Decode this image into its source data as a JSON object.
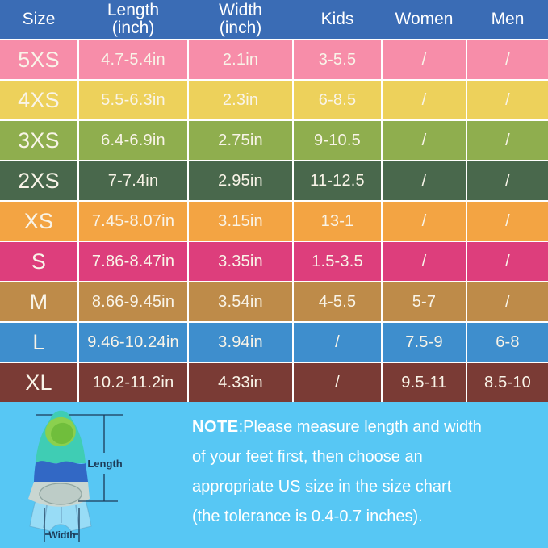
{
  "chart_data": {
    "type": "table",
    "title": "Swim fin size chart",
    "header_color": "#3A6CB5",
    "text_color": "#F9F4E8",
    "columns": [
      {
        "label": "Size",
        "line2": ""
      },
      {
        "label": "Length",
        "line2": "(inch)"
      },
      {
        "label": "Width",
        "line2": "(inch)"
      },
      {
        "label": "Kids",
        "line2": ""
      },
      {
        "label": "Women",
        "line2": ""
      },
      {
        "label": "Men",
        "line2": ""
      }
    ],
    "rows": [
      {
        "color": "#F78DA9",
        "cells": [
          "5XS",
          "4.7-5.4in",
          "2.1in",
          "3-5.5",
          "/",
          "/"
        ]
      },
      {
        "color": "#EDD15B",
        "cells": [
          "4XS",
          "5.5-6.3in",
          "2.3in",
          "6-8.5",
          "/",
          "/"
        ]
      },
      {
        "color": "#8FAE4E",
        "cells": [
          "3XS",
          "6.4-6.9in",
          "2.75in",
          "9-10.5",
          "/",
          "/"
        ]
      },
      {
        "color": "#49684C",
        "cells": [
          "2XS",
          "7-7.4in",
          "2.95in",
          "11-12.5",
          "/",
          "/"
        ]
      },
      {
        "color": "#F3A443",
        "cells": [
          "XS",
          "7.45-8.07in",
          "3.15in",
          "13-1",
          "/",
          "/"
        ]
      },
      {
        "color": "#DD3E7C",
        "cells": [
          "S",
          "7.86-8.47in",
          "3.35in",
          "1.5-3.5",
          "/",
          "/"
        ]
      },
      {
        "color": "#BE8B49",
        "cells": [
          "M",
          "8.66-9.45in",
          "3.54in",
          "4-5.5",
          "5-7",
          "/"
        ]
      },
      {
        "color": "#3E8ECD",
        "cells": [
          "L",
          "9.46-10.24in",
          "3.94in",
          "/",
          "7.5-9",
          "6-8"
        ]
      },
      {
        "color": "#7A3B35",
        "cells": [
          "XL",
          "10.2-11.2in",
          "4.33in",
          "/",
          "9.5-11",
          "8.5-10"
        ]
      }
    ]
  },
  "note": {
    "label": "NOTE",
    "rest_of_line1": ":Please measure length and width",
    "line2": "of your feet first, then choose an",
    "line3": "appropriate US size in the size chart",
    "line4": "(the tolerance is 0.4-0.7 inches)."
  },
  "fin": {
    "length_label": "Length",
    "width_label": "Width"
  },
  "colors": {
    "footer_bg": "#57C7F4",
    "measure_line": "#1C3A57"
  }
}
